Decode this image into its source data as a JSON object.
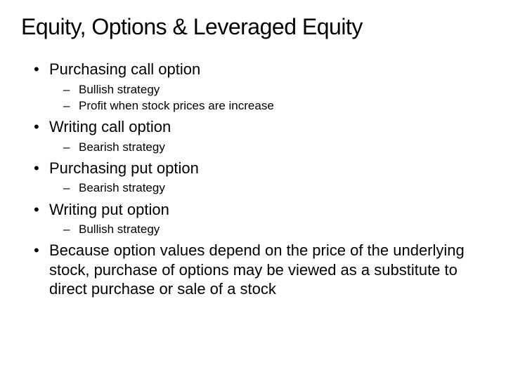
{
  "title": "Equity, Options & Leveraged Equity",
  "items": [
    {
      "text": "Purchasing call option",
      "sub": [
        "Bullish strategy",
        "Profit when stock prices are increase"
      ]
    },
    {
      "text": "Writing call option",
      "sub": [
        "Bearish strategy"
      ]
    },
    {
      "text": "Purchasing put option",
      "sub": [
        "Bearish strategy"
      ]
    },
    {
      "text": "Writing put option",
      "sub": [
        "Bullish strategy"
      ]
    },
    {
      "text": "Because option values depend on the price of the underlying stock, purchase of options may be viewed as a substitute to direct purchase or sale of a stock",
      "sub": []
    }
  ],
  "style": {
    "title_fontsize": 32,
    "l1_fontsize": 22,
    "l2_fontsize": 17,
    "text_color": "#000000",
    "background_color": "#ffffff"
  }
}
